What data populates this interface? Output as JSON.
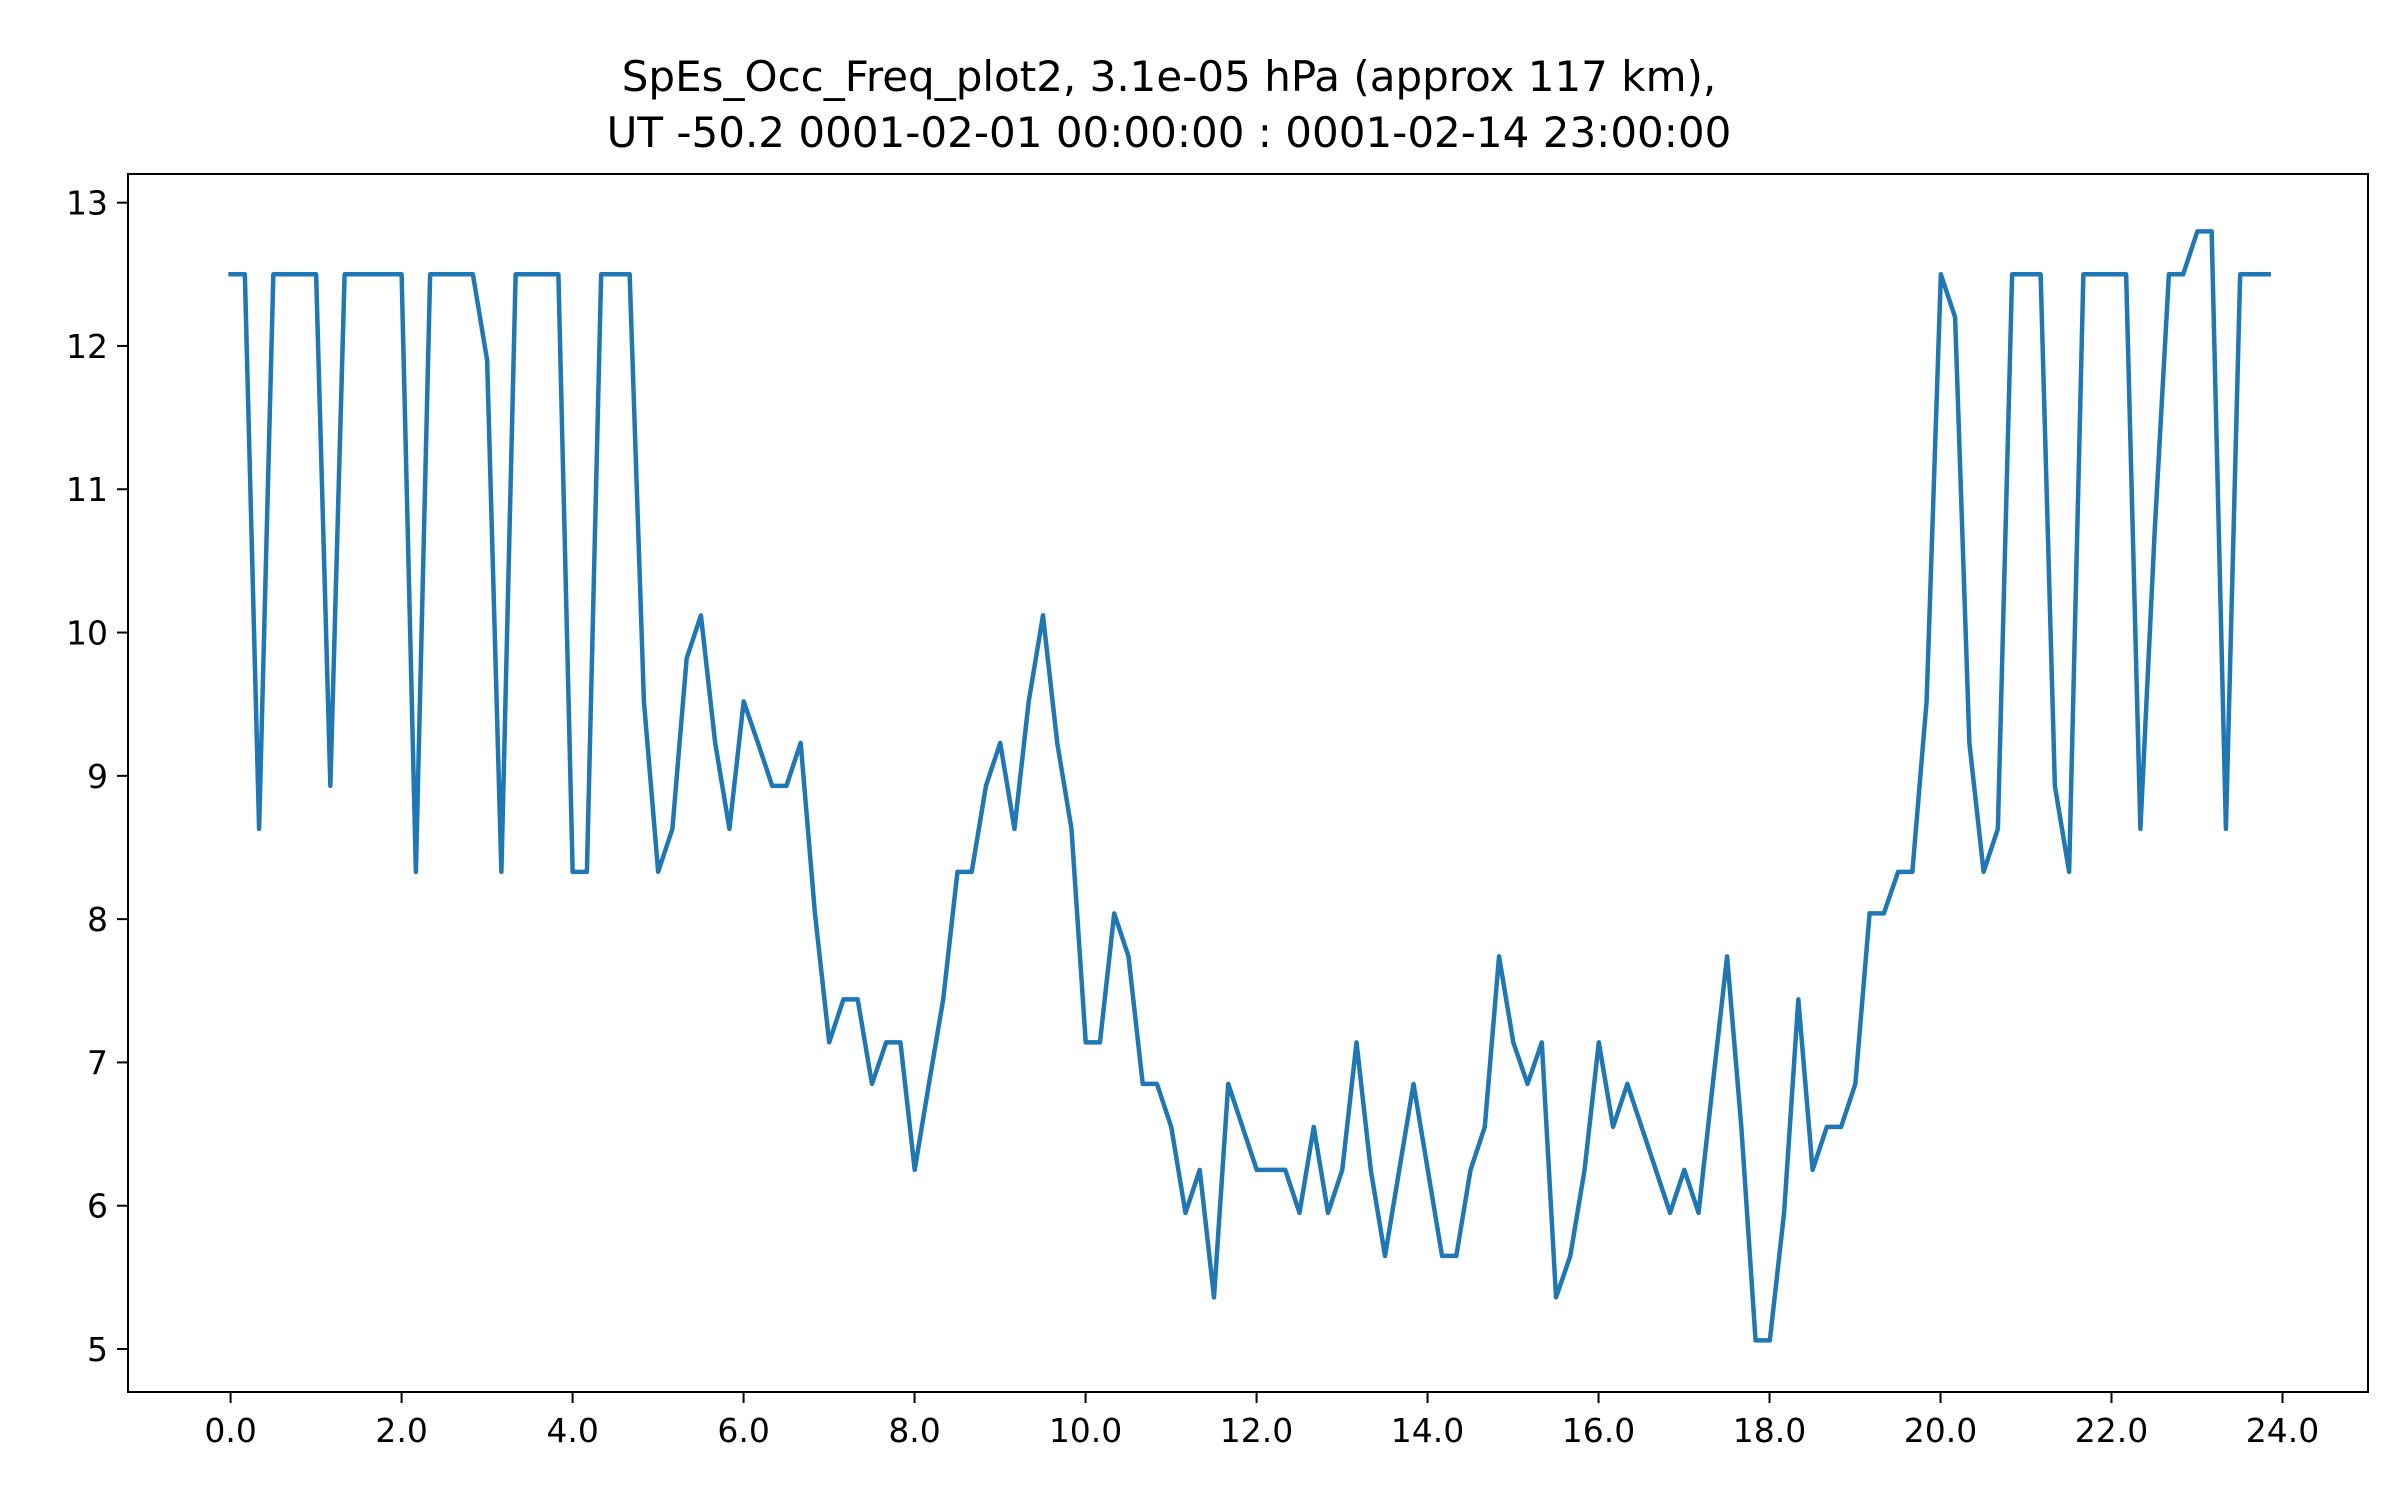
{
  "chart_data": {
    "type": "line",
    "title": [
      "SpEs_Occ_Freq_plot2, 3.1e-05 hPa (approx 117 km),",
      "UT -50.2 0001-02-01 00:00:00 : 0001-02-14 23:00:00"
    ],
    "xlabel": "",
    "ylabel": "",
    "xlim": [
      -1.2,
      25.0
    ],
    "ylim": [
      4.7,
      13.2
    ],
    "xticks": [
      0,
      2,
      4,
      6,
      8,
      10,
      12,
      14,
      16,
      18,
      20,
      22,
      24
    ],
    "xtick_labels": [
      "0.0",
      "2.0",
      "4.0",
      "6.0",
      "8.0",
      "10.0",
      "12.0",
      "14.0",
      "16.0",
      "18.0",
      "20.0",
      "22.0",
      "24.0"
    ],
    "yticks": [
      5,
      6,
      7,
      8,
      9,
      10,
      11,
      12,
      13
    ],
    "ytick_labels": [
      "5",
      "6",
      "7",
      "8",
      "9",
      "10",
      "11",
      "12",
      "13"
    ],
    "grid": false,
    "line_color": "#1f77b4",
    "x_start": 0.0,
    "x_step": 0.1667,
    "y": [
      12.5,
      12.5,
      8.63,
      12.5,
      12.5,
      12.5,
      12.5,
      8.93,
      12.5,
      12.5,
      12.5,
      12.5,
      12.5,
      8.33,
      12.5,
      12.5,
      12.5,
      12.5,
      11.9,
      8.33,
      12.5,
      12.5,
      12.5,
      12.5,
      8.33,
      8.33,
      12.5,
      12.5,
      12.5,
      9.52,
      8.33,
      8.63,
      9.82,
      10.12,
      9.23,
      8.63,
      9.52,
      9.23,
      8.93,
      8.93,
      9.23,
      8.04,
      7.14,
      7.44,
      7.44,
      6.85,
      7.14,
      7.14,
      6.25,
      6.85,
      7.44,
      8.33,
      8.33,
      8.93,
      9.23,
      8.63,
      9.52,
      10.12,
      9.23,
      8.63,
      7.14,
      7.14,
      8.04,
      7.74,
      6.85,
      6.85,
      6.55,
      5.95,
      6.25,
      5.36,
      6.85,
      6.55,
      6.25,
      6.25,
      6.25,
      5.95,
      6.55,
      5.95,
      6.25,
      7.14,
      6.25,
      5.65,
      6.25,
      6.85,
      6.25,
      5.65,
      5.65,
      6.25,
      6.55,
      7.74,
      7.14,
      6.85,
      7.14,
      5.36,
      5.65,
      6.25,
      7.14,
      6.55,
      6.85,
      6.55,
      6.25,
      5.95,
      6.25,
      5.95,
      6.85,
      7.74,
      6.55,
      5.06,
      5.06,
      5.95,
      7.44,
      6.25,
      6.55,
      6.55,
      6.85,
      8.04,
      8.04,
      8.33,
      8.33,
      9.52,
      12.5,
      12.2,
      9.23,
      8.33,
      8.63,
      12.5,
      12.5,
      12.5,
      8.93,
      8.33,
      12.5,
      12.5,
      12.5,
      12.5,
      8.63,
      10.7,
      12.5,
      12.5,
      12.8,
      12.8,
      8.63,
      12.5,
      12.5,
      12.5
    ]
  }
}
